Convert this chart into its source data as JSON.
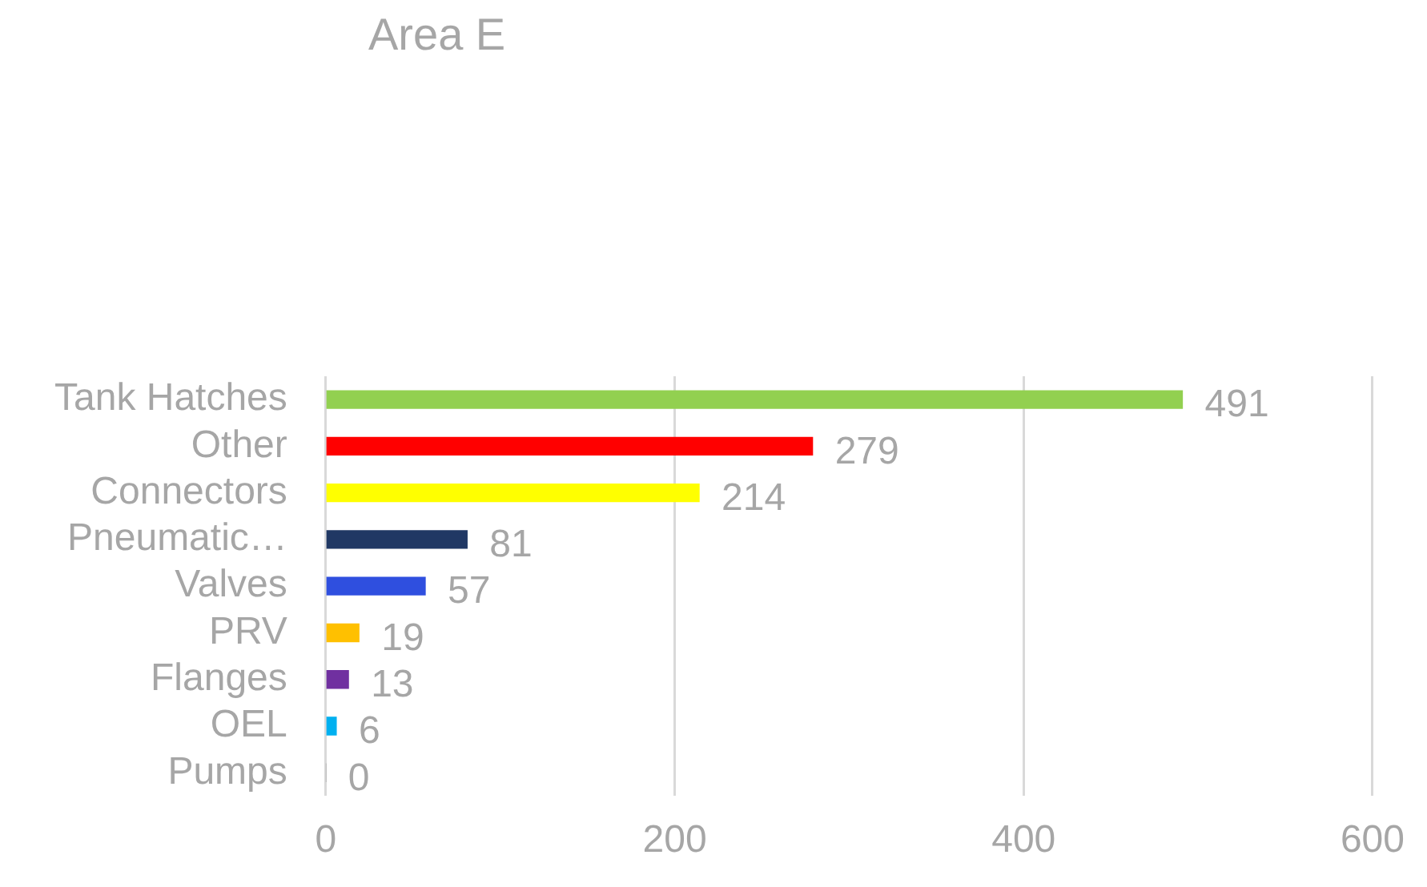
{
  "chart_data": {
    "type": "bar",
    "orientation": "horizontal",
    "title": "Area E",
    "categories": [
      "Tank Hatches",
      "Other",
      "Connectors",
      "Pneumatic…",
      "Valves",
      "PRV",
      "Flanges",
      "OEL",
      "Pumps"
    ],
    "values": [
      491,
      279,
      214,
      81,
      57,
      19,
      13,
      6,
      0
    ],
    "colors": [
      "#92d050",
      "#ff0000",
      "#ffff00",
      "#203864",
      "#2f4fdf",
      "#ffc000",
      "#7030a0",
      "#00b0f0",
      "#a5a5a5"
    ],
    "xlim": [
      0,
      600
    ],
    "xticks": [
      0,
      200,
      400,
      600
    ],
    "grid": "x",
    "legend": false,
    "data_labels": true
  }
}
